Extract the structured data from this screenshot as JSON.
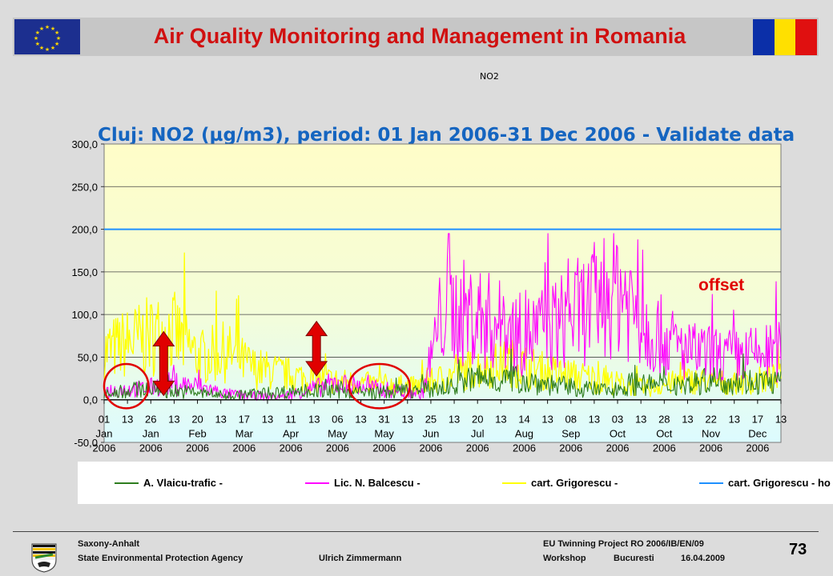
{
  "header": {
    "title": "Air Quality Monitoring and Management in Romania",
    "small_label": "NO2"
  },
  "chart_data": {
    "type": "line",
    "title": "Cluj:   NO2 (µg/m3), period: 01 Jan 2006-31 Dec 2006 - Validate data",
    "xlabel": "",
    "ylabel": "",
    "ylim": [
      -50,
      300
    ],
    "yticks": [
      "300,0",
      "250,0",
      "200,0",
      "150,0",
      "100,0",
      "50,0",
      "0,0",
      "-50,0"
    ],
    "xtick_labels": [
      {
        "day": "01",
        "month": "Jan",
        "year": "2006"
      },
      {
        "day": "13",
        "month": "",
        "year": ""
      },
      {
        "day": "26",
        "month": "Jan",
        "year": "2006"
      },
      {
        "day": "13",
        "month": "",
        "year": ""
      },
      {
        "day": "20",
        "month": "Feb",
        "year": "2006"
      },
      {
        "day": "13",
        "month": "",
        "year": ""
      },
      {
        "day": "17",
        "month": "Mar",
        "year": "2006"
      },
      {
        "day": "13",
        "month": "",
        "year": ""
      },
      {
        "day": "11",
        "month": "Apr",
        "year": "2006"
      },
      {
        "day": "13",
        "month": "",
        "year": ""
      },
      {
        "day": "06",
        "month": "May",
        "year": "2006"
      },
      {
        "day": "13",
        "month": "",
        "year": ""
      },
      {
        "day": "31",
        "month": "May",
        "year": "2006"
      },
      {
        "day": "13",
        "month": "",
        "year": ""
      },
      {
        "day": "25",
        "month": "Jun",
        "year": "2006"
      },
      {
        "day": "13",
        "month": "",
        "year": ""
      },
      {
        "day": "20",
        "month": "Jul",
        "year": "2006"
      },
      {
        "day": "13",
        "month": "",
        "year": ""
      },
      {
        "day": "14",
        "month": "Aug",
        "year": "2006"
      },
      {
        "day": "13",
        "month": "",
        "year": ""
      },
      {
        "day": "08",
        "month": "Sep",
        "year": "2006"
      },
      {
        "day": "13",
        "month": "",
        "year": ""
      },
      {
        "day": "03",
        "month": "Oct",
        "year": "2006"
      },
      {
        "day": "13",
        "month": "",
        "year": ""
      },
      {
        "day": "28",
        "month": "Oct",
        "year": "2006"
      },
      {
        "day": "13",
        "month": "",
        "year": ""
      },
      {
        "day": "22",
        "month": "Nov",
        "year": "2006"
      },
      {
        "day": "13",
        "month": "",
        "year": ""
      },
      {
        "day": "17",
        "month": "Dec",
        "year": "2006"
      },
      {
        "day": "13",
        "month": "",
        "year": ""
      }
    ],
    "series": [
      {
        "name": "A. Vlaicu-trafic -",
        "color": "#2e7d1e",
        "profile": [
          [
            0,
            5
          ],
          [
            6,
            10
          ],
          [
            10,
            8
          ],
          [
            14,
            6
          ],
          [
            18,
            3
          ],
          [
            22,
            5
          ],
          [
            30,
            8
          ],
          [
            40,
            6
          ],
          [
            50,
            10
          ],
          [
            55,
            20
          ],
          [
            62,
            18
          ],
          [
            70,
            10
          ],
          [
            75,
            8
          ],
          [
            78,
            15
          ],
          [
            82,
            12
          ],
          [
            86,
            14
          ],
          [
            90,
            18
          ],
          [
            100,
            16
          ]
        ]
      },
      {
        "name": "Lic. N. Balcescu -",
        "color": "#ff00ff",
        "profile": [
          [
            0,
            8
          ],
          [
            6,
            10
          ],
          [
            10,
            15
          ],
          [
            14,
            12
          ],
          [
            18,
            5
          ],
          [
            22,
            3
          ],
          [
            26,
            2
          ],
          [
            34,
            15
          ],
          [
            40,
            10
          ],
          [
            47,
            5
          ],
          [
            50,
            85
          ],
          [
            55,
            80
          ],
          [
            62,
            60
          ],
          [
            68,
            75
          ],
          [
            72,
            90
          ],
          [
            76,
            110
          ],
          [
            80,
            70
          ],
          [
            86,
            45
          ],
          [
            93,
            40
          ],
          [
            100,
            45
          ]
        ]
      },
      {
        "name": "cart. Grigorescu -",
        "color": "#ffff00",
        "profile": [
          [
            0,
            45
          ],
          [
            4,
            55
          ],
          [
            10,
            65
          ],
          [
            14,
            40
          ],
          [
            18,
            45
          ],
          [
            22,
            30
          ],
          [
            30,
            20
          ],
          [
            38,
            15
          ],
          [
            46,
            12
          ],
          [
            50,
            20
          ],
          [
            55,
            30
          ],
          [
            60,
            35
          ],
          [
            66,
            25
          ],
          [
            72,
            20
          ],
          [
            76,
            15
          ],
          [
            80,
            10
          ],
          [
            86,
            18
          ],
          [
            93,
            15
          ],
          [
            100,
            20
          ]
        ]
      },
      {
        "name": "cart. Grigorescu - horizontal",
        "color": "#1e90ff",
        "constant": 200
      }
    ],
    "annotations": [
      {
        "type": "text",
        "label": "offset",
        "color": "#e00000"
      },
      {
        "type": "ellipse",
        "color": "#e00000",
        "x_range": [
          0,
          1.9
        ],
        "y_range": [
          -10,
          42
        ]
      },
      {
        "type": "ellipse",
        "color": "#e00000",
        "x_range": [
          10.5,
          13.1
        ],
        "y_range": [
          -10,
          42
        ]
      },
      {
        "type": "double-arrow",
        "color": "#e00000",
        "x": 2.55,
        "y_range": [
          5,
          80
        ]
      },
      {
        "type": "double-arrow",
        "color": "#e00000",
        "x": 9.1,
        "y_range": [
          28,
          92
        ]
      }
    ],
    "grid": true,
    "legend_position": "bottom",
    "colors": {
      "plot_bg_top": "#fffdc8",
      "plot_bg_bottom": "#dcfbff",
      "title": "#1565c0"
    }
  },
  "legend_labels": {
    "s1": "A. Vlaicu-trafic -",
    "s2": "Lic. N. Balcescu -",
    "s3": "cart. Grigorescu -",
    "s4": "cart. Grigorescu - ho"
  },
  "footer": {
    "org1": "Saxony-Anhalt",
    "org2": "State Environmental Protection Agency",
    "author": "Ulrich Zimmermann",
    "project": "EU Twinning Project RO 2006/IB/EN/09",
    "event": "Workshop",
    "city": "Bucuresti",
    "date": "16.04.2009",
    "page": "73"
  }
}
